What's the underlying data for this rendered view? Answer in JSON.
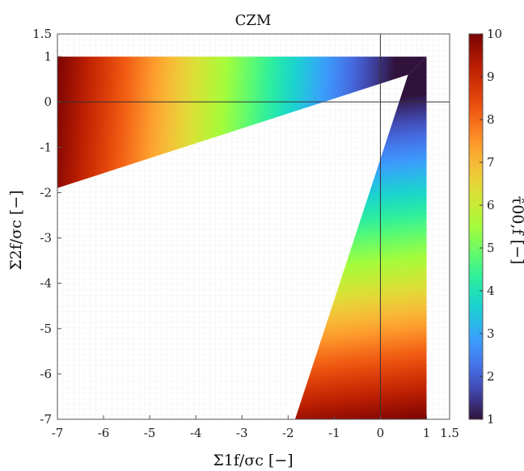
{
  "chart_data": {
    "type": "heatmap",
    "title": "CZM",
    "xlabel": "Σ1f/σc [−]",
    "ylabel": "Σ2f/σc [−]",
    "colorbar_label": "τ̂00,f [−]",
    "xlim": [
      -7,
      1.5
    ],
    "ylim": [
      -7,
      1.5
    ],
    "x_ticks": [
      -7,
      -6,
      -5,
      -4,
      -3,
      -2,
      -1,
      0,
      1,
      1.5
    ],
    "y_ticks": [
      -7,
      -6,
      -5,
      -4,
      -3,
      -2,
      -1,
      0,
      1,
      1.5
    ],
    "colorbar_ticks": [
      1,
      2,
      3,
      4,
      5,
      6,
      7,
      8,
      9,
      10
    ],
    "colorbar_range": [
      1,
      10
    ],
    "colormap": "turbo",
    "grid": true,
    "colormap_stops": [
      "#30123b",
      "#4145ab",
      "#4675ed",
      "#39a2fc",
      "#1bcfd4",
      "#24eca6",
      "#61fc6c",
      "#a4fc3b",
      "#d1e834",
      "#f3c63a",
      "#fe9b2d",
      "#f36315",
      "#d93806",
      "#b11901",
      "#7a0403"
    ],
    "region_branches": [
      {
        "name": "upper band",
        "polygon": [
          [
            -7,
            1
          ],
          [
            1,
            1
          ],
          [
            0.6,
            0.6
          ],
          [
            -7,
            -1.9
          ]
        ],
        "color_gradient": [
          {
            "point": [
              0.3,
              0.5
            ],
            "value": 1
          },
          {
            "point": [
              -7,
              1
            ],
            "value": 10
          }
        ]
      },
      {
        "name": "right band",
        "polygon": [
          [
            1,
            1
          ],
          [
            1,
            -7
          ],
          [
            -1.85,
            -7
          ],
          [
            0.6,
            0.6
          ]
        ],
        "color_gradient": [
          {
            "point": [
              0.2,
              0.1
            ],
            "value": 1
          },
          {
            "point": [
              1,
              -7
            ],
            "value": 10
          }
        ]
      }
    ],
    "reference_lines": [
      {
        "axis": "x",
        "value": 0
      },
      {
        "axis": "y",
        "value": 0
      }
    ]
  }
}
